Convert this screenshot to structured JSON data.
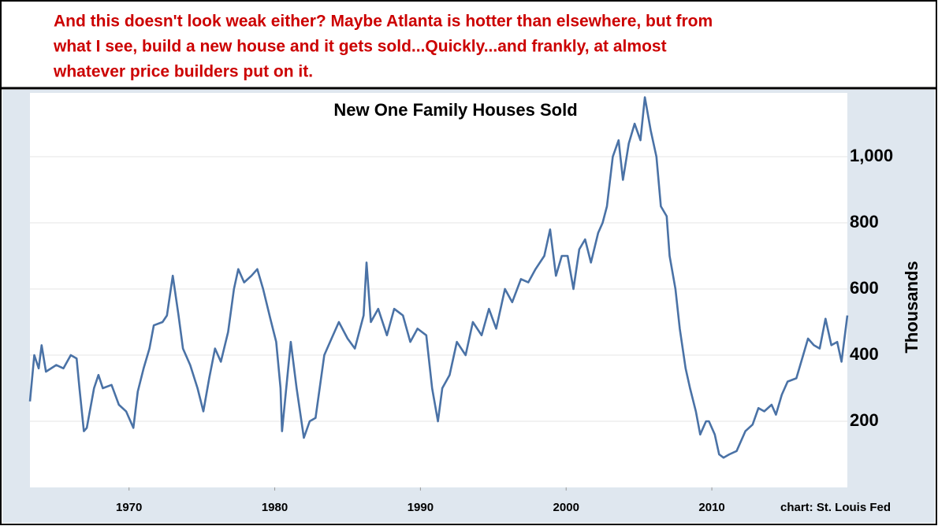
{
  "annotation": [
    "And this doesn't look weak either? Maybe Atlanta is hotter than elsewhere, but from",
    "what I see, build a new house and it gets sold...Quickly...and frankly, at almost",
    "whatever price builders put on it."
  ],
  "chart_data": {
    "type": "line",
    "title": "New One Family Houses Sold",
    "y_label": "Thousands",
    "source": "chart: St. Louis Fed",
    "color": "#4a72a6",
    "grid": true,
    "xlim": [
      1963.2,
      2019.3
    ],
    "xticks": [
      1970,
      1980,
      1990,
      2000,
      2010
    ],
    "ylim": [
      0,
      1193
    ],
    "yticks": [
      200,
      400,
      600,
      800,
      {
        "value": 1000,
        "label": "1,000"
      }
    ],
    "x": [
      1963.2,
      1963.5,
      1963.8,
      1964.0,
      1964.3,
      1965.0,
      1965.5,
      1966.0,
      1966.4,
      1966.6,
      1966.9,
      1967.1,
      1967.6,
      1967.9,
      1968.2,
      1968.8,
      1969.3,
      1969.8,
      1970.3,
      1970.6,
      1971.0,
      1971.4,
      1971.7,
      1972.3,
      1972.6,
      1973.0,
      1973.4,
      1973.7,
      1974.2,
      1974.7,
      1975.1,
      1975.5,
      1975.9,
      1976.3,
      1976.8,
      1977.2,
      1977.5,
      1977.9,
      1978.4,
      1978.8,
      1979.2,
      1979.7,
      1980.1,
      1980.4,
      1980.5,
      1981.1,
      1981.5,
      1982.0,
      1982.4,
      1982.8,
      1983.4,
      1983.9,
      1984.4,
      1985.0,
      1985.5,
      1986.1,
      1986.3,
      1986.6,
      1987.1,
      1987.7,
      1988.2,
      1988.8,
      1989.3,
      1989.8,
      1990.4,
      1990.8,
      1991.2,
      1991.5,
      1992.0,
      1992.5,
      1993.1,
      1993.6,
      1994.2,
      1994.7,
      1995.2,
      1995.8,
      1996.3,
      1996.9,
      1997.4,
      1997.9,
      1998.5,
      1998.9,
      1999.3,
      1999.7,
      2000.1,
      2000.5,
      2000.9,
      2001.3,
      2001.7,
      2002.2,
      2002.5,
      2002.8,
      2003.2,
      2003.6,
      2003.9,
      2004.3,
      2004.7,
      2005.1,
      2005.4,
      2005.8,
      2006.2,
      2006.5,
      2006.9,
      2007.1,
      2007.5,
      2007.8,
      2008.2,
      2008.5,
      2008.9,
      2009.2,
      2009.6,
      2009.8,
      2010.2,
      2010.5,
      2010.8,
      2011.2,
      2011.7,
      2012.3,
      2012.8,
      2013.2,
      2013.6,
      2014.1,
      2014.4,
      2014.8,
      2015.2,
      2015.8,
      2016.2,
      2016.6,
      2017.0,
      2017.4,
      2017.8,
      2018.2,
      2018.6,
      2018.9,
      2019.3
    ],
    "values": [
      260,
      400,
      360,
      430,
      350,
      370,
      360,
      400,
      390,
      300,
      170,
      180,
      300,
      340,
      300,
      310,
      250,
      230,
      180,
      290,
      360,
      420,
      490,
      500,
      520,
      640,
      520,
      420,
      370,
      300,
      230,
      330,
      420,
      380,
      470,
      600,
      660,
      620,
      640,
      660,
      600,
      510,
      440,
      300,
      170,
      440,
      300,
      150,
      200,
      210,
      400,
      450,
      500,
      450,
      420,
      520,
      680,
      500,
      540,
      460,
      540,
      520,
      440,
      480,
      460,
      300,
      200,
      300,
      340,
      440,
      400,
      500,
      460,
      540,
      480,
      600,
      560,
      630,
      620,
      660,
      700,
      780,
      640,
      700,
      700,
      600,
      720,
      750,
      680,
      770,
      800,
      850,
      1000,
      1050,
      930,
      1040,
      1100,
      1050,
      1180,
      1080,
      1000,
      850,
      820,
      700,
      600,
      480,
      360,
      300,
      230,
      160,
      200,
      200,
      160,
      100,
      90,
      100,
      110,
      170,
      190,
      240,
      230,
      250,
      220,
      280,
      320,
      330,
      390,
      450,
      430,
      420,
      510,
      430,
      440,
      380,
      520
    ]
  }
}
